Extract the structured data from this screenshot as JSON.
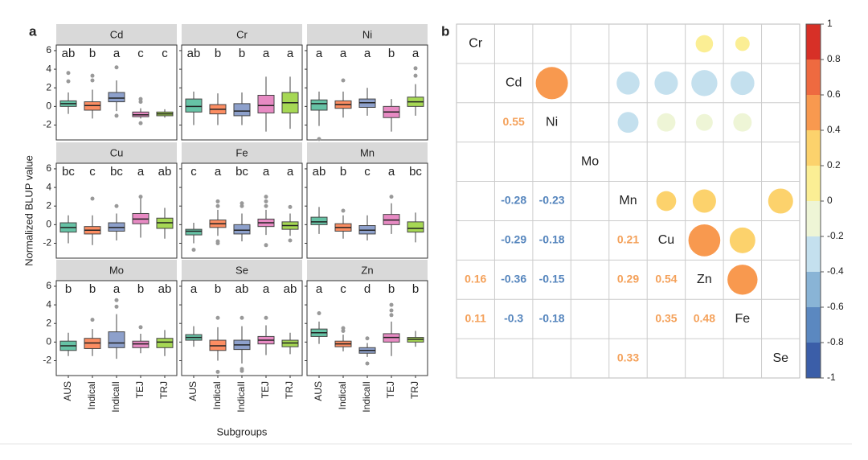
{
  "chart_data": [
    {
      "type": "box",
      "panel_label": "a",
      "ylabel": "Normalized BLUP value",
      "xlabel": "Subgroups",
      "categories": [
        "AUS",
        "IndicaI",
        "IndicaII",
        "TEJ",
        "TRJ"
      ],
      "colors": [
        "#66c2a5",
        "#fc8d62",
        "#8da0cb",
        "#e78ac3",
        "#a6d854"
      ],
      "ylim": [
        -3.6,
        6.6
      ],
      "yticks": [
        -2,
        0,
        2,
        4,
        6
      ],
      "facets": [
        {
          "name": "Cd",
          "letters": [
            "ab",
            "b",
            "a",
            "c",
            "c"
          ],
          "boxes": [
            {
              "lo": -0.8,
              "q1": 0,
              "median": 0.3,
              "q3": 0.6,
              "hi": 1.5,
              "outliers": [
                2.7,
                3.6
              ]
            },
            {
              "lo": -1.3,
              "q1": -0.4,
              "median": 0.1,
              "q3": 0.5,
              "hi": 1.8,
              "outliers": [
                2.8,
                3.3
              ]
            },
            {
              "lo": -0.5,
              "q1": 0.5,
              "median": 0.9,
              "q3": 1.5,
              "hi": 2.8,
              "outliers": [
                4.2,
                -1
              ]
            },
            {
              "lo": -1.3,
              "q1": -1.1,
              "median": -0.9,
              "q3": -0.6,
              "hi": -0.2,
              "outliers": [
                0.5,
                0.8,
                -1.8
              ]
            },
            {
              "lo": -1.2,
              "q1": -1,
              "median": -0.8,
              "q3": -0.6,
              "hi": -0.3,
              "outliers": []
            }
          ]
        },
        {
          "name": "Cr",
          "letters": [
            "ab",
            "b",
            "b",
            "a",
            "a"
          ],
          "boxes": [
            {
              "lo": -2,
              "q1": -0.6,
              "median": 0,
              "q3": 0.8,
              "hi": 1.6,
              "outliers": []
            },
            {
              "lo": -2,
              "q1": -0.8,
              "median": -0.3,
              "q3": 0.2,
              "hi": 1.4,
              "outliers": []
            },
            {
              "lo": -2,
              "q1": -1,
              "median": -0.5,
              "q3": 0.3,
              "hi": 1.5,
              "outliers": []
            },
            {
              "lo": -2.7,
              "q1": -0.7,
              "median": 0.1,
              "q3": 1.2,
              "hi": 3.2,
              "outliers": []
            },
            {
              "lo": -2.4,
              "q1": -0.7,
              "median": 0.4,
              "q3": 1.5,
              "hi": 3.2,
              "outliers": []
            }
          ]
        },
        {
          "name": "Ni",
          "letters": [
            "a",
            "a",
            "a",
            "b",
            "a"
          ],
          "boxes": [
            {
              "lo": -2.1,
              "q1": -0.4,
              "median": 0.3,
              "q3": 0.7,
              "hi": 1.6,
              "outliers": [
                -3.5
              ]
            },
            {
              "lo": -1.2,
              "q1": -0.2,
              "median": 0.2,
              "q3": 0.6,
              "hi": 1.6,
              "outliers": [
                2.8
              ]
            },
            {
              "lo": -1,
              "q1": -0.1,
              "median": 0.4,
              "q3": 0.8,
              "hi": 2,
              "outliers": []
            },
            {
              "lo": -2.7,
              "q1": -1.2,
              "median": -0.6,
              "q3": 0,
              "hi": 0.8,
              "outliers": []
            },
            {
              "lo": -1,
              "q1": 0,
              "median": 0.5,
              "q3": 1,
              "hi": 2.4,
              "outliers": [
                3.3,
                4.1
              ]
            }
          ]
        },
        {
          "name": "Cu",
          "letters": [
            "bc",
            "c",
            "bc",
            "a",
            "ab"
          ],
          "boxes": [
            {
              "lo": -2,
              "q1": -0.8,
              "median": -0.3,
              "q3": 0.2,
              "hi": 1,
              "outliers": []
            },
            {
              "lo": -2.2,
              "q1": -1,
              "median": -0.6,
              "q3": -0.2,
              "hi": 1,
              "outliers": [
                2.8
              ]
            },
            {
              "lo": -1.7,
              "q1": -0.7,
              "median": -0.3,
              "q3": 0.2,
              "hi": 1.2,
              "outliers": [
                2
              ]
            },
            {
              "lo": -1.4,
              "q1": 0.1,
              "median": 0.6,
              "q3": 1.2,
              "hi": 2.8,
              "outliers": [
                3
              ]
            },
            {
              "lo": -1.5,
              "q1": -0.4,
              "median": 0.2,
              "q3": 0.7,
              "hi": 1.8,
              "outliers": []
            }
          ]
        },
        {
          "name": "Fe",
          "letters": [
            "c",
            "a",
            "bc",
            "a",
            "a"
          ],
          "boxes": [
            {
              "lo": -2,
              "q1": -1.1,
              "median": -0.7,
              "q3": -0.5,
              "hi": 0.2,
              "outliers": [
                -2.7
              ]
            },
            {
              "lo": -1.2,
              "q1": -0.3,
              "median": 0.1,
              "q3": 0.5,
              "hi": 1.6,
              "outliers": [
                2,
                2.5,
                -1.8,
                -2
              ]
            },
            {
              "lo": -1.8,
              "q1": -1,
              "median": -0.6,
              "q3": 0,
              "hi": 1.2,
              "outliers": [
                2,
                2.3
              ]
            },
            {
              "lo": -1.1,
              "q1": -0.2,
              "median": 0.2,
              "q3": 0.6,
              "hi": 1.6,
              "outliers": [
                2,
                2.5,
                3,
                -2.2
              ]
            },
            {
              "lo": -1.2,
              "q1": -0.5,
              "median": -0.1,
              "q3": 0.3,
              "hi": 1.2,
              "outliers": [
                1.9,
                -1.7
              ]
            }
          ]
        },
        {
          "name": "Mn",
          "letters": [
            "ab",
            "b",
            "c",
            "a",
            "bc"
          ],
          "boxes": [
            {
              "lo": -1,
              "q1": 0,
              "median": 0.3,
              "q3": 0.8,
              "hi": 1.9,
              "outliers": []
            },
            {
              "lo": -1.5,
              "q1": -0.7,
              "median": -0.3,
              "q3": 0.1,
              "hi": 1,
              "outliers": [
                1.5
              ]
            },
            {
              "lo": -1.7,
              "q1": -1,
              "median": -0.6,
              "q3": -0.1,
              "hi": 1,
              "outliers": []
            },
            {
              "lo": -1,
              "q1": 0,
              "median": 0.5,
              "q3": 1.1,
              "hi": 2.3,
              "outliers": [
                3
              ]
            },
            {
              "lo": -1.9,
              "q1": -0.8,
              "median": -0.4,
              "q3": 0.3,
              "hi": 1.3,
              "outliers": []
            }
          ]
        },
        {
          "name": "Mo",
          "letters": [
            "b",
            "b",
            "a",
            "b",
            "ab"
          ],
          "boxes": [
            {
              "lo": -1.5,
              "q1": -0.9,
              "median": -0.4,
              "q3": 0.1,
              "hi": 1,
              "outliers": []
            },
            {
              "lo": -1.5,
              "q1": -0.7,
              "median": -0.1,
              "q3": 0.4,
              "hi": 1.4,
              "outliers": [
                2.4
              ]
            },
            {
              "lo": -1.8,
              "q1": -0.6,
              "median": -0.1,
              "q3": 1.1,
              "hi": 3,
              "outliers": [
                3.8,
                4.5
              ]
            },
            {
              "lo": -1.2,
              "q1": -0.6,
              "median": -0.2,
              "q3": 0.1,
              "hi": 0.9,
              "outliers": [
                1.6
              ]
            },
            {
              "lo": -1.5,
              "q1": -0.6,
              "median": 0,
              "q3": 0.4,
              "hi": 1.3,
              "outliers": []
            }
          ]
        },
        {
          "name": "Se",
          "letters": [
            "a",
            "b",
            "ab",
            "a",
            "ab"
          ],
          "boxes": [
            {
              "lo": -0.5,
              "q1": 0.2,
              "median": 0.5,
              "q3": 0.8,
              "hi": 1.7,
              "outliers": []
            },
            {
              "lo": -2,
              "q1": -0.9,
              "median": -0.4,
              "q3": 0.2,
              "hi": 1.6,
              "outliers": [
                2.6,
                -3.2
              ]
            },
            {
              "lo": -2.3,
              "q1": -0.8,
              "median": -0.3,
              "q3": 0.2,
              "hi": 1.7,
              "outliers": [
                2.6,
                -2.9,
                -3.1
              ]
            },
            {
              "lo": -1.4,
              "q1": -0.2,
              "median": 0.2,
              "q3": 0.6,
              "hi": 1.8,
              "outliers": [
                2.6
              ]
            },
            {
              "lo": -1.3,
              "q1": -0.5,
              "median": -0.1,
              "q3": 0.2,
              "hi": 1,
              "outliers": []
            }
          ]
        },
        {
          "name": "Zn",
          "letters": [
            "a",
            "c",
            "d",
            "b",
            "b"
          ],
          "boxes": [
            {
              "lo": -0.2,
              "q1": 0.6,
              "median": 1,
              "q3": 1.4,
              "hi": 2.2,
              "outliers": [
                3.1
              ]
            },
            {
              "lo": -1,
              "q1": -0.5,
              "median": -0.2,
              "q3": 0.1,
              "hi": 0.8,
              "outliers": [
                1.2,
                1.5
              ]
            },
            {
              "lo": -1.6,
              "q1": -1.2,
              "median": -0.9,
              "q3": -0.6,
              "hi": -0.1,
              "outliers": [
                0.4,
                -2.3
              ]
            },
            {
              "lo": -1.5,
              "q1": 0,
              "median": 0.5,
              "q3": 0.9,
              "hi": 2.2,
              "outliers": [
                2.9,
                3.4,
                4
              ]
            },
            {
              "lo": -0.5,
              "q1": 0,
              "median": 0.3,
              "q3": 0.5,
              "hi": 1.2,
              "outliers": []
            }
          ]
        }
      ]
    },
    {
      "type": "corrplot",
      "panel_label": "b",
      "labels": [
        "Cr",
        "Cd",
        "Ni",
        "Mo",
        "Mn",
        "Cu",
        "Zn",
        "Fe",
        "Se"
      ],
      "matrix": [
        [
          null,
          null,
          null,
          null,
          null,
          null,
          null,
          null,
          null
        ],
        [
          null,
          null,
          null,
          null,
          null,
          null,
          null,
          null,
          null
        ],
        [
          null,
          0.55,
          null,
          null,
          null,
          null,
          null,
          null,
          null
        ],
        [
          null,
          null,
          null,
          null,
          null,
          null,
          null,
          null,
          null
        ],
        [
          null,
          -0.28,
          -0.23,
          null,
          null,
          null,
          null,
          null,
          null
        ],
        [
          null,
          -0.29,
          -0.18,
          null,
          0.21,
          null,
          null,
          null,
          null
        ],
        [
          0.16,
          -0.36,
          -0.15,
          null,
          0.29,
          0.54,
          null,
          null,
          null
        ],
        [
          0.11,
          -0.3,
          -0.18,
          null,
          null,
          0.35,
          0.48,
          null,
          null
        ],
        [
          null,
          null,
          null,
          null,
          0.33,
          null,
          null,
          null,
          null
        ]
      ],
      "positive_color": "#f4a15a",
      "negative_color": "#5585bd",
      "clim": [
        -1,
        1
      ],
      "cticks": [
        -1,
        -0.8,
        -0.6,
        -0.4,
        -0.2,
        0,
        0.2,
        0.4,
        0.6,
        0.8,
        1
      ],
      "colorscale": [
        "#3b5ea8",
        "#5b88c0",
        "#89b4d6",
        "#c4e0ee",
        "#eef5d6",
        "#fbee94",
        "#fcd26c",
        "#f8994f",
        "#ee6a40",
        "#d73027"
      ]
    }
  ]
}
